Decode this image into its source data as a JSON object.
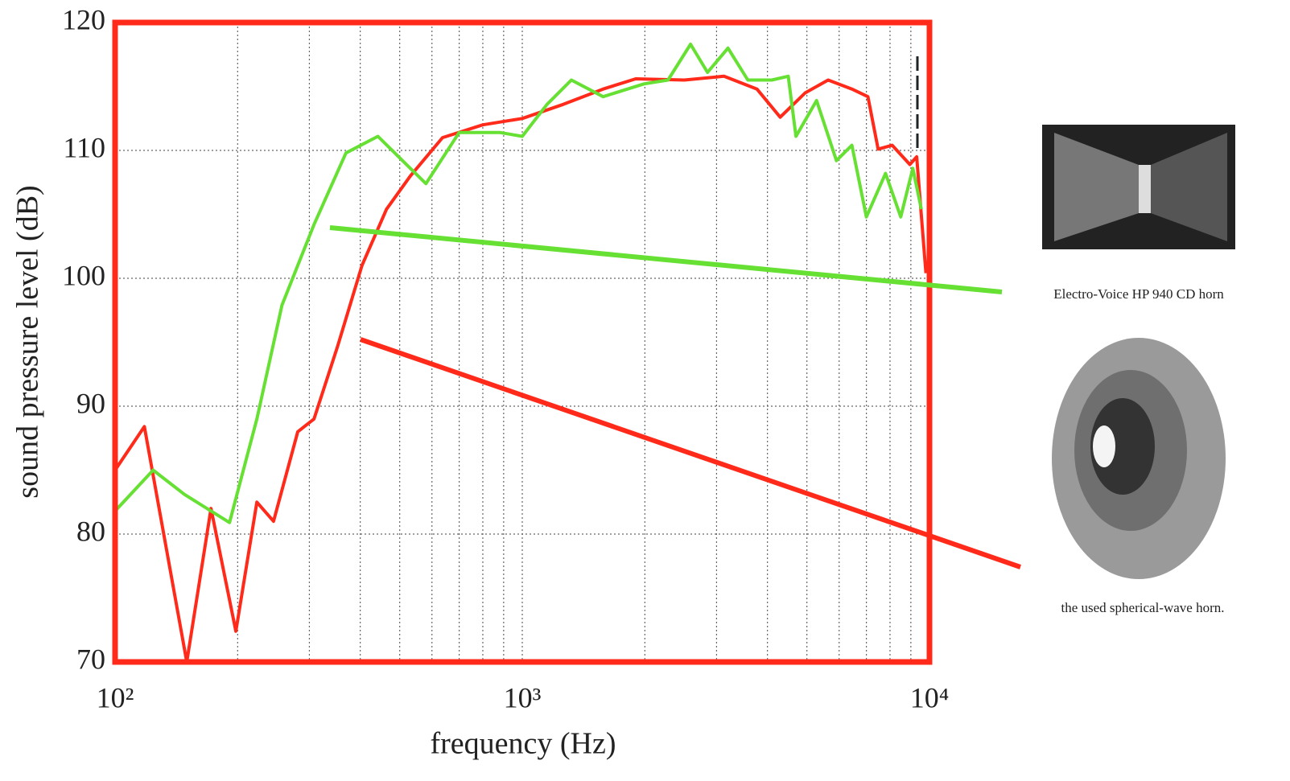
{
  "chart_data": {
    "type": "line",
    "xlabel": "frequency (Hz)",
    "ylabel": "sound pressure level  (dB)",
    "xscale": "log",
    "xlim": [
      100,
      10000
    ],
    "ylim": [
      70,
      120
    ],
    "xticks": [
      {
        "value": 100,
        "label": "10²"
      },
      {
        "value": 1000,
        "label": "10³"
      },
      {
        "value": 10000,
        "label": "10⁴"
      }
    ],
    "xminorticks": [
      200,
      300,
      400,
      500,
      600,
      700,
      800,
      900,
      2000,
      3000,
      4000,
      5000,
      6000,
      7000,
      8000,
      9000
    ],
    "yticks": [
      70,
      80,
      90,
      100,
      110,
      120
    ],
    "grid": true,
    "series": [
      {
        "name": "the used spherical-wave horn.",
        "color": "#ff2a1a",
        "x": [
          100,
          118,
          150,
          172,
          198,
          223,
          245,
          281,
          308,
          352,
          404,
          464,
          531,
          637,
          800,
          1000,
          1260,
          1580,
          1900,
          2500,
          3130,
          3770,
          4300,
          4950,
          5640,
          6450,
          7060,
          7480,
          8100,
          8950,
          9300,
          9800
        ],
        "values": [
          85,
          88.4,
          70,
          82,
          72.4,
          82.5,
          81,
          88,
          89,
          94.7,
          101,
          105.4,
          108,
          111,
          112,
          112.5,
          113.6,
          114.8,
          115.6,
          115.5,
          115.8,
          114.8,
          112.6,
          114.5,
          115.5,
          114.8,
          114.2,
          110.1,
          110.4,
          108.9,
          109.5,
          100.4
        ]
      },
      {
        "name": "Electro-Voice HP 940 CD horn",
        "color": "#66e033",
        "x": [
          100,
          124,
          148,
          191,
          223,
          257,
          308,
          369,
          442,
          531,
          580,
          700,
          880,
          1000,
          1150,
          1320,
          1580,
          1990,
          2280,
          2590,
          2850,
          3200,
          3580,
          4100,
          4500,
          4700,
          5280,
          5910,
          6450,
          7000,
          7800,
          8500,
          9100,
          9550
        ],
        "values": [
          81.8,
          85,
          83.1,
          80.9,
          89,
          97.9,
          104.2,
          109.8,
          111.1,
          108.6,
          107.4,
          111.4,
          111.4,
          111.1,
          113.6,
          115.5,
          114.2,
          115.2,
          115.5,
          118.3,
          116.1,
          118,
          115.5,
          115.5,
          115.8,
          111.1,
          113.9,
          109.2,
          110.4,
          104.8,
          108.2,
          104.8,
          108.6,
          105.4
        ]
      }
    ]
  }
}
